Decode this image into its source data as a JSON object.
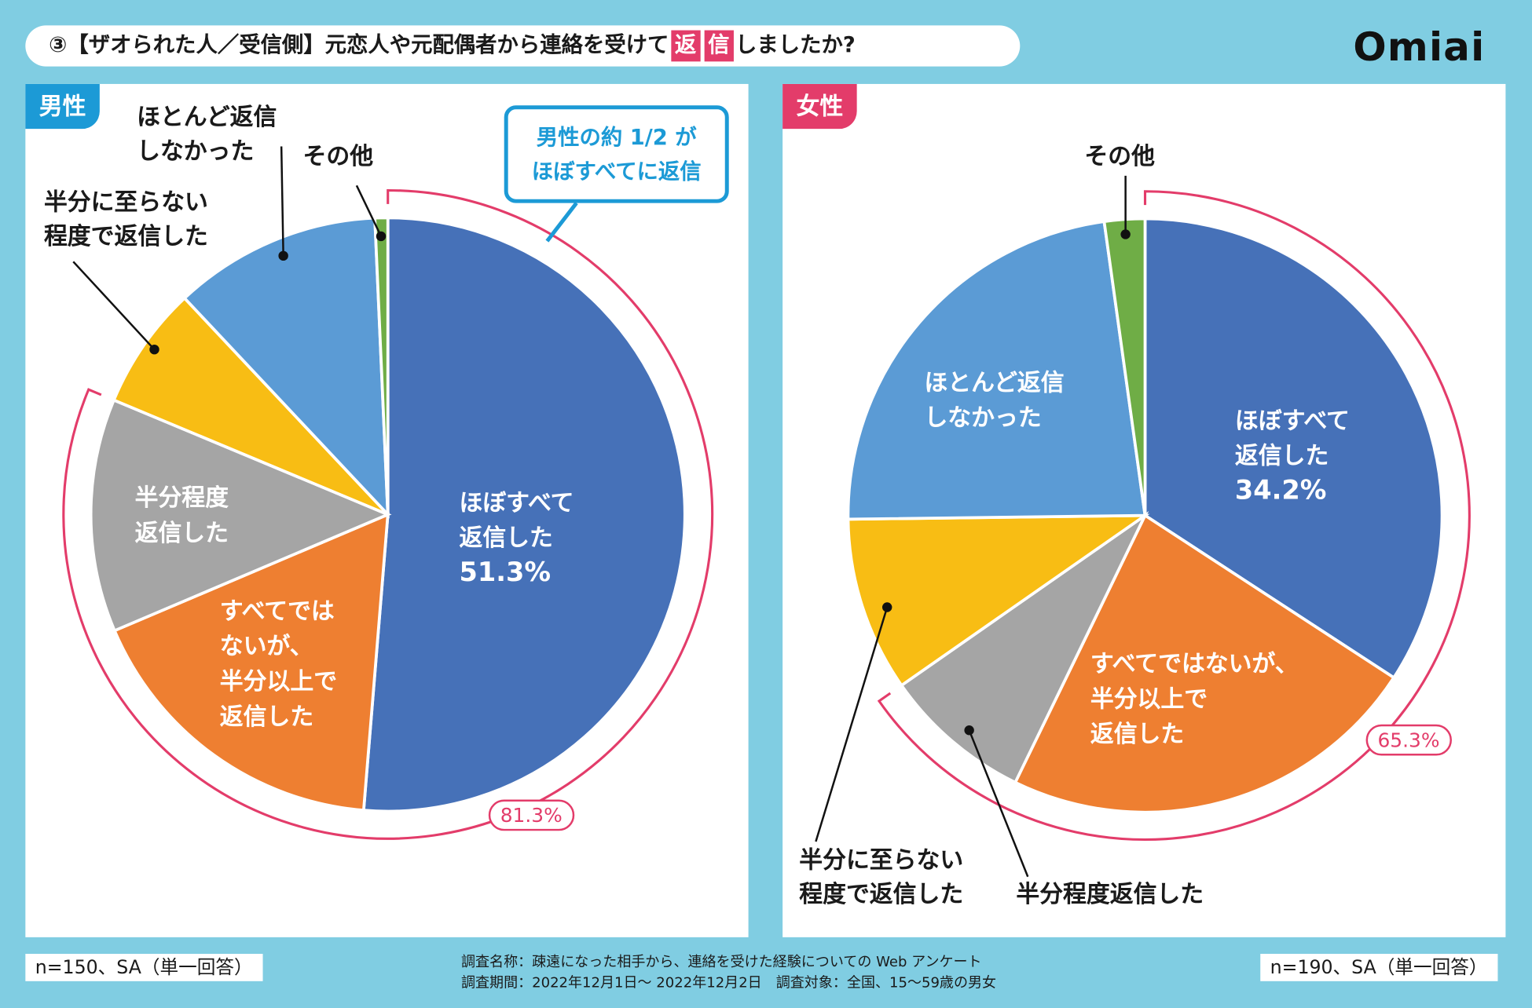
{
  "header": {
    "title_prefix": "③【ザオられた人／受信側】元恋人や元配偶者から連絡を受けて",
    "title_highlight_1": "返",
    "title_highlight_2": "信",
    "title_suffix": "しましたか?",
    "logo": "Omiai"
  },
  "colors": {
    "background": "#80cde2",
    "accent": "#e33c6a",
    "male_tag": "#1c9ad6",
    "female_tag": "#e33c6a"
  },
  "chart_data": [
    {
      "type": "pie",
      "title": "男性",
      "categories": [
        "ほぼすべて返信した",
        "すべてではないが、半分以上で返信した",
        "半分程度返信した",
        "半分に至らない程度で返信した",
        "ほとんど返信しなかった",
        "その他"
      ],
      "values": [
        51.3,
        17.3,
        12.7,
        6.7,
        11.3,
        0.7
      ],
      "colors": [
        "#4671b8",
        "#ee7f31",
        "#a5a5a5",
        "#f8bd14",
        "#5b9bd5",
        "#6fad46"
      ],
      "in_labels": [
        "ほぼすべて\n返信した",
        "すべてでは\nないが、\n半分以上で\n返信した",
        "半分程度\n返信した"
      ],
      "out_labels": [
        "半分に至らない\n程度で返信した",
        "ほとんど返信\nしなかった",
        "その他"
      ],
      "highlight_value": "51.3%",
      "bracket_label": "81.3%",
      "callout": "男性の約 1/2 が\nほぼすべてに返信",
      "note": "n=150、SA（単一回答）"
    },
    {
      "type": "pie",
      "title": "女性",
      "categories": [
        "ほぼすべて返信した",
        "すべてではないが、半分以上で返信した",
        "半分程度返信した",
        "半分に至らない程度で返信した",
        "ほとんど返信しなかった",
        "その他"
      ],
      "values": [
        34.2,
        23.0,
        8.1,
        9.5,
        23.0,
        2.2
      ],
      "colors": [
        "#4671b8",
        "#ee7f31",
        "#a5a5a5",
        "#f8bd14",
        "#5b9bd5",
        "#6fad46"
      ],
      "in_labels": [
        "ほぼすべて\n返信した",
        "すべてではないが、\n半分以上で\n返信した",
        "ほとんど返信\nしなかった"
      ],
      "out_labels": [
        "その他",
        "半分に至らない\n程度で返信した",
        "半分程度返信した"
      ],
      "highlight_value": "34.2%",
      "bracket_label": "65.3%",
      "note": "n=190、SA（単一回答）"
    }
  ],
  "footer": {
    "line1": "調査名称：疎遠になった相手から、連絡を受けた経験についての Web アンケート",
    "line2": "調査期間：2022年12月1日～ 2022年12月2日　調査対象：全国、15～59歳の男女"
  }
}
